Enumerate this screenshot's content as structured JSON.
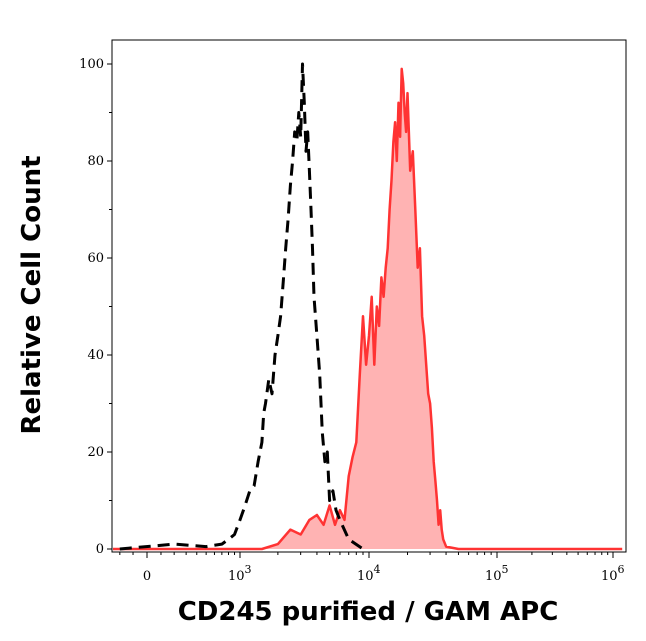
{
  "chart_data": {
    "type": "area",
    "title": "",
    "xlabel": "CD245 purified / GAM APC",
    "ylabel": "Relative Cell Count",
    "x_scale": "biexponential",
    "ylim": [
      0,
      105
    ],
    "grid": false,
    "legend": "none",
    "y_ticks": [
      {
        "value": 0,
        "label": "0"
      },
      {
        "value": 20,
        "label": "20"
      },
      {
        "value": 40,
        "label": "40"
      },
      {
        "value": 60,
        "label": "60"
      },
      {
        "value": 80,
        "label": "80"
      },
      {
        "value": 100,
        "label": "100"
      }
    ],
    "x_ticks": [
      {
        "value": 0,
        "label": "0",
        "base": "",
        "exp": ""
      },
      {
        "value": 1000,
        "label": "",
        "base": "10",
        "exp": "3"
      },
      {
        "value": 10000,
        "label": "",
        "base": "10",
        "exp": "4"
      },
      {
        "value": 100000,
        "label": "",
        "base": "10",
        "exp": "5"
      },
      {
        "value": 1000000,
        "label": "",
        "base": "10",
        "exp": "6"
      }
    ],
    "series": [
      {
        "style": "dashed",
        "color": "#000000",
        "fill": "none",
        "points": [
          [
            -200,
            0
          ],
          [
            200,
            1
          ],
          [
            500,
            0.5
          ],
          [
            700,
            1
          ],
          [
            800,
            2
          ],
          [
            900,
            3
          ],
          [
            1000,
            6
          ],
          [
            1100,
            9
          ],
          [
            1200,
            12
          ],
          [
            1300,
            13
          ],
          [
            1400,
            18
          ],
          [
            1500,
            22
          ],
          [
            1550,
            28
          ],
          [
            1600,
            30
          ],
          [
            1700,
            35
          ],
          [
            1800,
            32
          ],
          [
            1900,
            40
          ],
          [
            2000,
            44
          ],
          [
            2100,
            48
          ],
          [
            2200,
            55
          ],
          [
            2300,
            62
          ],
          [
            2400,
            68
          ],
          [
            2500,
            75
          ],
          [
            2600,
            80
          ],
          [
            2700,
            86
          ],
          [
            2800,
            84
          ],
          [
            2900,
            90
          ],
          [
            3000,
            85
          ],
          [
            3100,
            100
          ],
          [
            3200,
            92
          ],
          [
            3300,
            82
          ],
          [
            3400,
            86
          ],
          [
            3500,
            78
          ],
          [
            3600,
            70
          ],
          [
            3700,
            62
          ],
          [
            3800,
            52
          ],
          [
            4000,
            44
          ],
          [
            4200,
            36
          ],
          [
            4400,
            24
          ],
          [
            4600,
            18
          ],
          [
            4800,
            20
          ],
          [
            5000,
            10
          ],
          [
            5300,
            12
          ],
          [
            5600,
            8
          ],
          [
            6000,
            6
          ],
          [
            7000,
            2
          ],
          [
            9000,
            0
          ]
        ]
      },
      {
        "style": "solid",
        "color": "#ff3333",
        "fill": "#ffb3b3",
        "points": [
          [
            -300,
            0
          ],
          [
            1500,
            0
          ],
          [
            2000,
            1
          ],
          [
            2500,
            4
          ],
          [
            3000,
            3
          ],
          [
            3500,
            6
          ],
          [
            4000,
            7
          ],
          [
            4500,
            5
          ],
          [
            5000,
            9
          ],
          [
            5500,
            5
          ],
          [
            6000,
            8
          ],
          [
            6500,
            6
          ],
          [
            7000,
            15
          ],
          [
            7500,
            19
          ],
          [
            8000,
            22
          ],
          [
            8500,
            36
          ],
          [
            9000,
            48
          ],
          [
            9500,
            38
          ],
          [
            10000,
            44
          ],
          [
            10500,
            52
          ],
          [
            11000,
            38
          ],
          [
            11500,
            50
          ],
          [
            12000,
            46
          ],
          [
            12500,
            56
          ],
          [
            13000,
            52
          ],
          [
            13500,
            58
          ],
          [
            14000,
            62
          ],
          [
            14500,
            70
          ],
          [
            15000,
            76
          ],
          [
            15500,
            84
          ],
          [
            16000,
            88
          ],
          [
            16500,
            80
          ],
          [
            17000,
            92
          ],
          [
            17500,
            85
          ],
          [
            18000,
            99
          ],
          [
            18500,
            96
          ],
          [
            19000,
            90
          ],
          [
            19500,
            86
          ],
          [
            20000,
            94
          ],
          [
            21000,
            78
          ],
          [
            22000,
            82
          ],
          [
            23000,
            70
          ],
          [
            24000,
            58
          ],
          [
            25000,
            62
          ],
          [
            26000,
            48
          ],
          [
            27000,
            44
          ],
          [
            28000,
            38
          ],
          [
            29000,
            32
          ],
          [
            30000,
            30
          ],
          [
            31000,
            25
          ],
          [
            32000,
            18
          ],
          [
            33000,
            14
          ],
          [
            34000,
            10
          ],
          [
            35000,
            5
          ],
          [
            36000,
            8
          ],
          [
            37000,
            4
          ],
          [
            38000,
            2
          ],
          [
            40000,
            0.5
          ],
          [
            50000,
            0
          ],
          [
            1200000,
            0
          ]
        ]
      }
    ]
  }
}
